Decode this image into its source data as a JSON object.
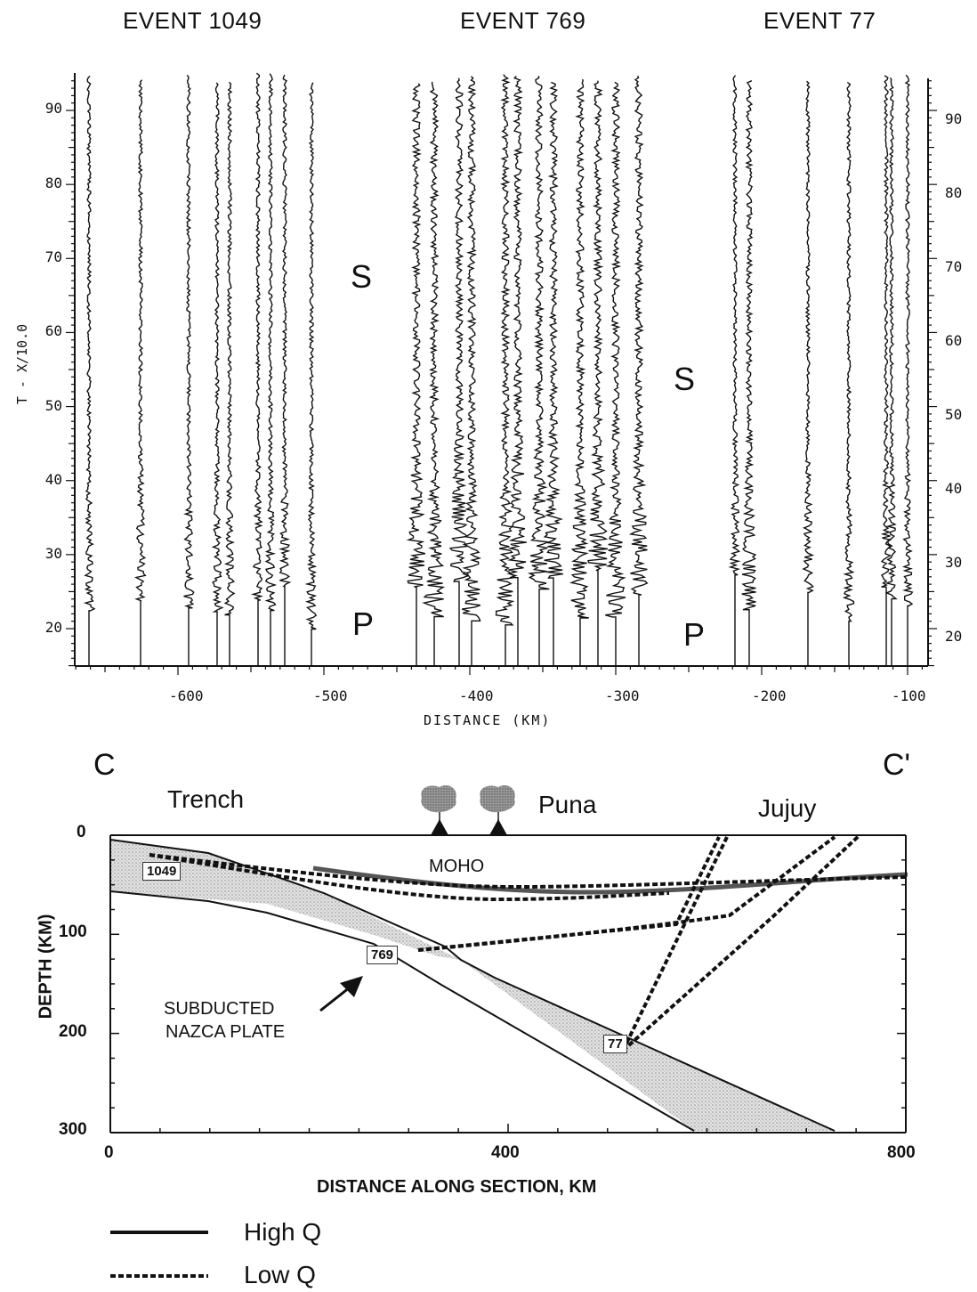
{
  "seismograms": {
    "events": [
      "EVENT 1049",
      "EVENT 769",
      "EVENT 77"
    ],
    "ylabel": "T - X/10.0",
    "xlabel": "DISTANCE (KM)",
    "phase_labels": {
      "s1": "S",
      "p1": "P",
      "s2": "S",
      "p2": "P"
    },
    "y_ticks": [
      "90",
      "80",
      "70",
      "60",
      "50",
      "40",
      "30",
      "20"
    ],
    "x_ticks": [
      "-600",
      "-500",
      "-400",
      "-300",
      "-200",
      "-100"
    ]
  },
  "section": {
    "corner_left": "C",
    "corner_right": "C'",
    "regions": [
      "Trench",
      "Puna",
      "Jujuy"
    ],
    "moho_label": "MOHO",
    "ylabel": "DEPTH (KM)",
    "xlabel": "DISTANCE ALONG SECTION, KM",
    "y_ticks": [
      "0",
      "100",
      "200",
      "300"
    ],
    "x_ticks": [
      "0",
      "400",
      "800"
    ],
    "event_boxes": [
      "1049",
      "769",
      "77"
    ],
    "plate_label_line1": "SUBDUCTED",
    "plate_label_line2": "NAZCA PLATE"
  },
  "legend": {
    "high_q": "High Q",
    "low_q": "Low Q"
  }
}
